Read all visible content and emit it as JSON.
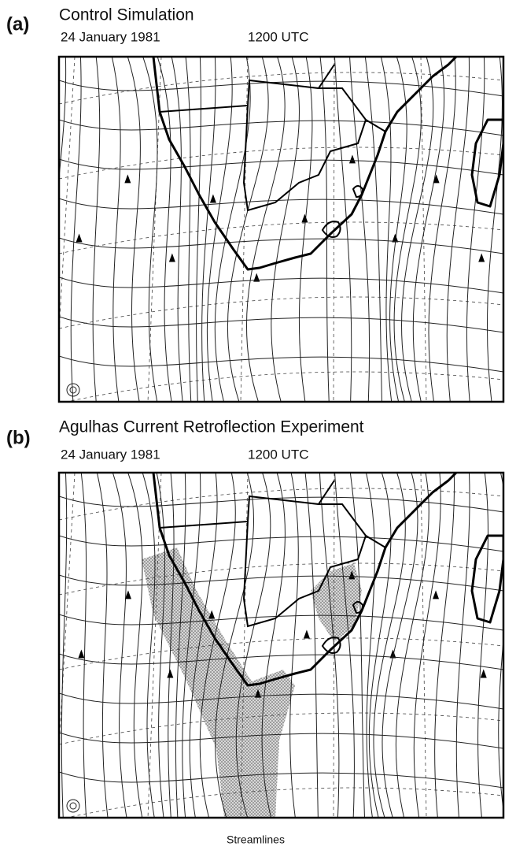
{
  "panels": [
    {
      "label": "(a)",
      "title": "Control Simulation",
      "date": "24 January 1981",
      "time": "1200 UTC"
    },
    {
      "label": "(b)",
      "title": "Agulhas Current Retroflection Experiment",
      "date": "24 January 1981",
      "time": "1200 UTC"
    }
  ],
  "caption": "Streamlines"
}
